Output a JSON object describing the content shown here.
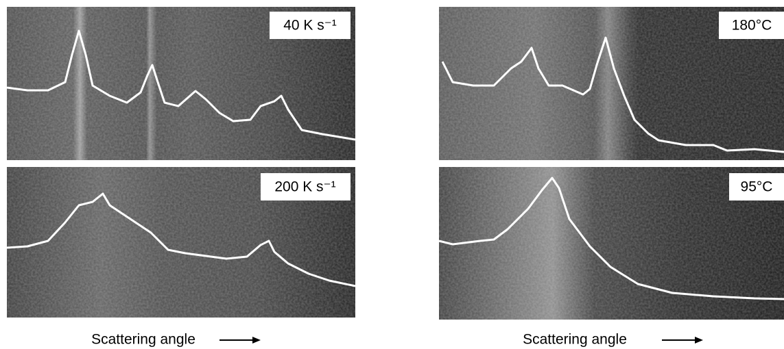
{
  "panels": [
    {
      "label": "40 K s⁻¹"
    },
    {
      "label": "200 K s⁻¹"
    },
    {
      "label": "180°C"
    },
    {
      "label": "95°C"
    }
  ],
  "axis_labels": [
    "Scattering angle",
    "Scattering angle"
  ]
}
